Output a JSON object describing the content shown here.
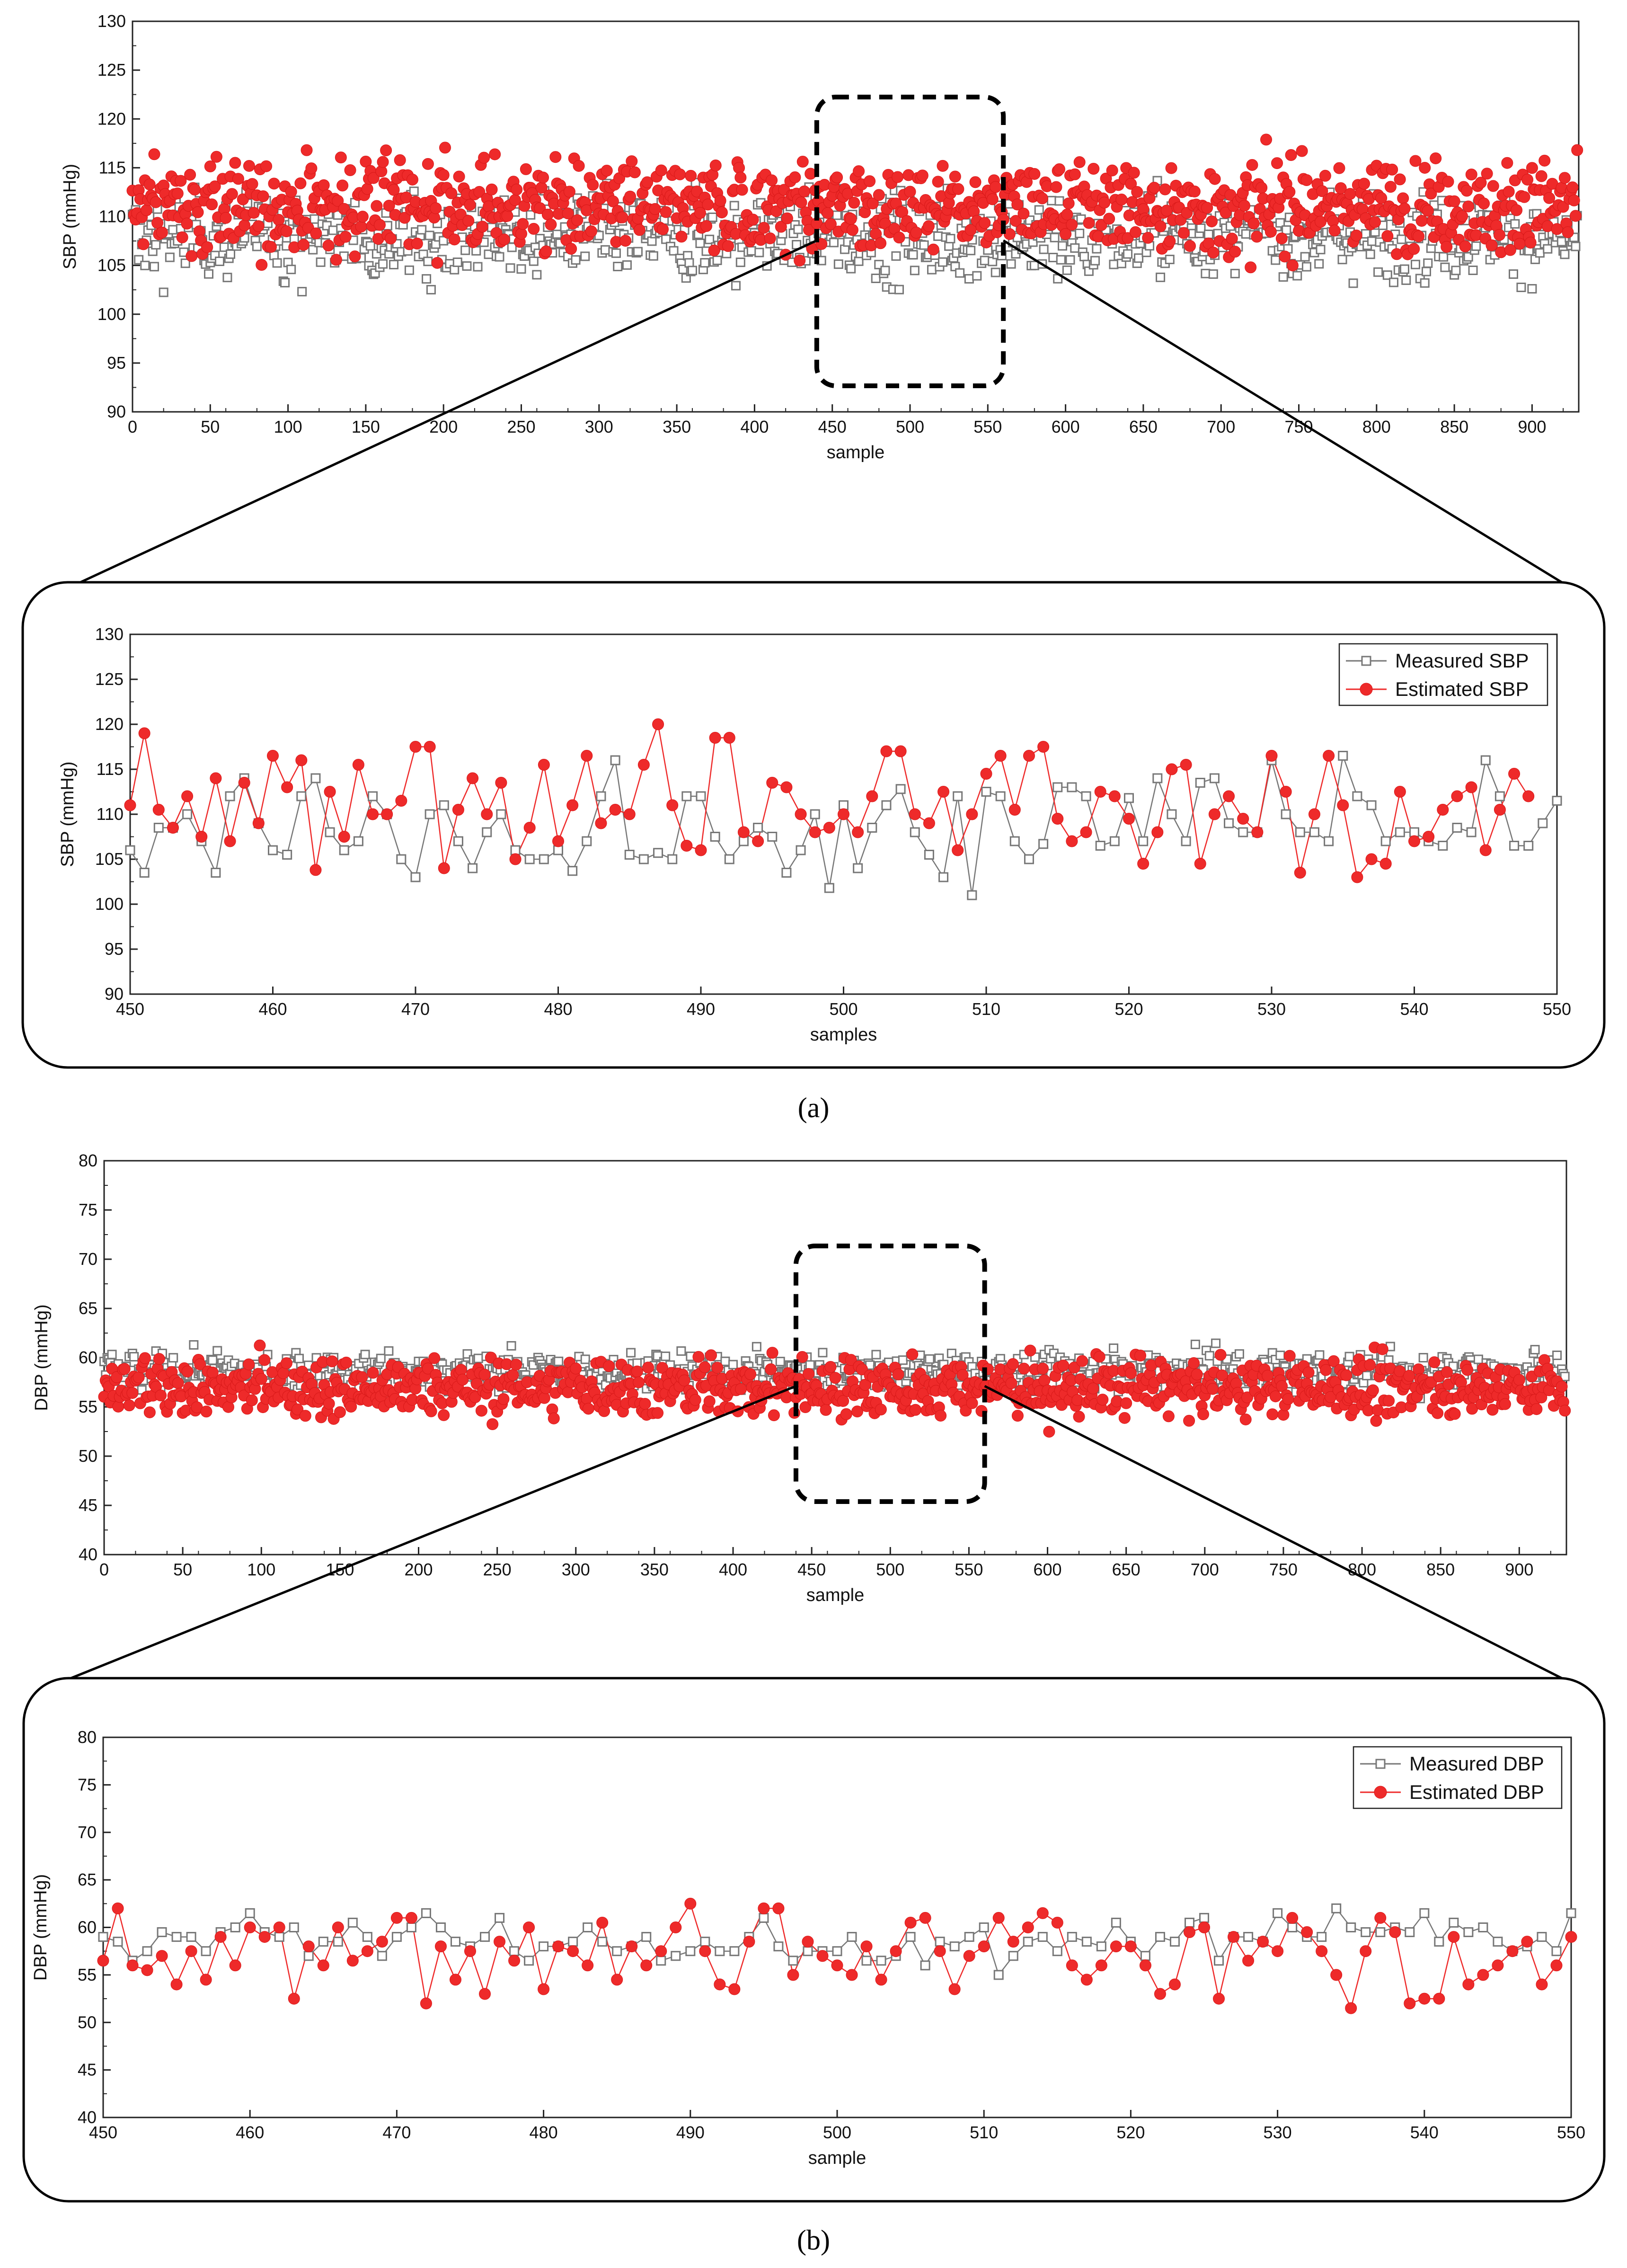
{
  "figure": {
    "label_a": "(a)",
    "label_b": "(b)"
  },
  "colors": {
    "measured": "#777777",
    "estimated": "#ee2a2a",
    "axis": "#222222"
  },
  "chart_data": [
    {
      "id": "sbp_full",
      "type": "scatter",
      "xlabel": "sample",
      "ylabel": "SBP (mmHg)",
      "xlim": [
        0,
        930
      ],
      "ylim": [
        90,
        130
      ],
      "xticks": [
        0,
        50,
        100,
        150,
        200,
        250,
        300,
        350,
        400,
        450,
        500,
        550,
        600,
        650,
        700,
        750,
        800,
        850,
        900
      ],
      "yticks": [
        90,
        95,
        100,
        105,
        110,
        115,
        120,
        125,
        130
      ],
      "series": [
        {
          "name": "Measured SBP",
          "n_points": 930,
          "approx_range": [
            98,
            120
          ],
          "approx_mean": 108
        },
        {
          "name": "Estimated SBP",
          "n_points": 930,
          "approx_range": [
            100,
            122
          ],
          "approx_mean": 111
        }
      ],
      "zoom_window": [
        440,
        560
      ]
    },
    {
      "id": "sbp_zoom",
      "type": "line",
      "xlabel": "samples",
      "ylabel": "SBP (mmHg)",
      "xlim": [
        450,
        550
      ],
      "ylim": [
        90,
        130
      ],
      "xticks": [
        450,
        460,
        470,
        480,
        490,
        500,
        510,
        520,
        530,
        540,
        550
      ],
      "yticks": [
        90,
        95,
        100,
        105,
        110,
        115,
        120,
        125,
        130
      ],
      "legend": [
        "Measured SBP",
        "Estimated SBP"
      ],
      "legend_position": "top-right",
      "x_start": 450,
      "series": [
        {
          "name": "Measured SBP",
          "values": [
            106,
            103.5,
            108.5,
            108.5,
            110,
            107,
            103.5,
            112,
            114,
            109,
            106,
            105.5,
            112,
            114,
            108,
            106,
            107,
            112,
            110,
            105,
            103,
            110,
            111,
            107,
            104,
            108,
            110,
            106,
            105,
            105,
            106,
            103.7,
            107,
            112,
            116,
            105.5,
            105,
            105.7,
            105,
            112,
            112,
            107.5,
            105,
            107,
            108.5,
            107.5,
            103.5,
            106,
            110,
            101.8,
            111,
            104,
            108.5,
            111,
            112.8,
            108,
            105.5,
            103,
            112,
            101,
            112.5,
            112,
            107,
            105,
            106.7,
            113,
            113,
            112,
            106.5,
            107,
            111.8,
            107,
            114,
            110,
            107,
            113.5,
            114,
            109,
            108,
            108,
            116,
            110,
            108,
            108,
            107,
            116.5,
            112,
            111,
            107,
            108,
            108,
            107,
            106.5,
            108.5,
            108,
            116,
            112,
            106.5,
            106.5,
            109,
            111.5
          ]
        },
        {
          "name": "Estimated SBP",
          "values": [
            111,
            119,
            110.5,
            108.5,
            112,
            107.5,
            114,
            107,
            113.5,
            109,
            116.5,
            113,
            116,
            103.8,
            112.5,
            107.5,
            115.5,
            110,
            110,
            111.5,
            117.5,
            117.5,
            104,
            110.5,
            114,
            110,
            113.5,
            105,
            108.5,
            115.5,
            107,
            111,
            116.5,
            109,
            110.5,
            110,
            115.5,
            120,
            111,
            106.5,
            106,
            118.5,
            118.5,
            108,
            107,
            113.5,
            113,
            110,
            108,
            108.5,
            110,
            108,
            112,
            117,
            117,
            110,
            109,
            112.5,
            106,
            110,
            114.5,
            116.5,
            110.5,
            116.5,
            117.5,
            109.5,
            107,
            108,
            112.5,
            112,
            109.5,
            104.5,
            108,
            115,
            115.5,
            104.5,
            110,
            112,
            109.5,
            108,
            116.5,
            112.5,
            103.5,
            110,
            116.5,
            111,
            103,
            105,
            104.5,
            112.5,
            107,
            107.5,
            110.5,
            112,
            113,
            106,
            110.5,
            114.5,
            112
          ]
        }
      ]
    },
    {
      "id": "dbp_full",
      "type": "scatter",
      "xlabel": "sample",
      "ylabel": "DBP (mmHg)",
      "xlim": [
        0,
        930
      ],
      "ylim": [
        40,
        80
      ],
      "xticks": [
        0,
        50,
        100,
        150,
        200,
        250,
        300,
        350,
        400,
        450,
        500,
        550,
        600,
        650,
        700,
        750,
        800,
        850,
        900
      ],
      "yticks": [
        40,
        45,
        50,
        55,
        60,
        65,
        70,
        75,
        80
      ],
      "series": [
        {
          "name": "Measured DBP",
          "n_points": 930,
          "approx_range": [
            54,
            64
          ],
          "approx_mean": 58.5
        },
        {
          "name": "Estimated DBP",
          "n_points": 930,
          "approx_range": [
            50,
            64
          ],
          "approx_mean": 57
        }
      ],
      "zoom_window": [
        440,
        560
      ]
    },
    {
      "id": "dbp_zoom",
      "type": "line",
      "xlabel": "sample",
      "ylabel": "DBP (mmHg)",
      "xlim": [
        450,
        550
      ],
      "ylim": [
        40,
        80
      ],
      "xticks": [
        450,
        460,
        470,
        480,
        490,
        500,
        510,
        520,
        530,
        540,
        550
      ],
      "yticks": [
        40,
        45,
        50,
        55,
        60,
        65,
        70,
        75,
        80
      ],
      "legend": [
        "Measured DBP",
        "Estimated DBP"
      ],
      "legend_position": "top-right",
      "x_start": 450,
      "series": [
        {
          "name": "Measured DBP",
          "values": [
            59,
            58.5,
            56.5,
            57.5,
            59.5,
            59,
            59,
            57.5,
            59.5,
            60,
            61.5,
            59.5,
            59,
            60,
            57,
            58.5,
            58.5,
            60.5,
            59,
            57,
            59,
            60,
            61.5,
            60,
            58.5,
            58,
            59,
            61,
            57.5,
            56.5,
            58,
            58,
            58.5,
            60,
            58.5,
            57.5,
            58,
            59,
            56.5,
            57,
            57.5,
            58.5,
            57.5,
            57.5,
            59,
            61,
            58,
            56.5,
            57.5,
            57.5,
            57.5,
            59,
            56.5,
            56.5,
            57,
            59,
            56,
            58.5,
            58,
            59,
            60,
            55,
            57,
            58.5,
            59,
            57.5,
            59,
            58.5,
            58,
            60.5,
            58.5,
            57,
            59,
            58.5,
            60.5,
            61,
            56.5,
            59,
            59,
            58.5,
            61.5,
            60,
            59,
            59,
            62,
            60,
            59.5,
            59.5,
            60,
            59.5,
            61.5,
            58.5,
            60.5,
            59.5,
            60,
            58.5,
            57.5,
            58,
            59,
            57.5,
            61.5
          ]
        },
        {
          "name": "Estimated DBP",
          "values": [
            56.5,
            62,
            56,
            55.5,
            57,
            54,
            57.5,
            54.5,
            59,
            56,
            60,
            59,
            60,
            52.5,
            58,
            56,
            60,
            56.5,
            57.5,
            58.5,
            61,
            61,
            52,
            58,
            54.5,
            57.5,
            53,
            58.5,
            56.5,
            60,
            53.5,
            58,
            57.5,
            56,
            60.5,
            54.5,
            58,
            56,
            57.5,
            60,
            62.5,
            57.5,
            54,
            53.5,
            58.5,
            62,
            62,
            55,
            58.5,
            57,
            56,
            55,
            58,
            54.5,
            57.5,
            60.5,
            61,
            57.5,
            53.5,
            57,
            58,
            61,
            58.5,
            60,
            61.5,
            60.5,
            56,
            54.5,
            56,
            58,
            58,
            56,
            53,
            54,
            59.5,
            60,
            52.5,
            59,
            56.5,
            58.5,
            57.5,
            61,
            59.5,
            57.5,
            55,
            51.5,
            57.5,
            61,
            59.5,
            52,
            52.5,
            52.5,
            59,
            54,
            55,
            56,
            57.5,
            58.5,
            54,
            56,
            59
          ]
        }
      ]
    }
  ]
}
